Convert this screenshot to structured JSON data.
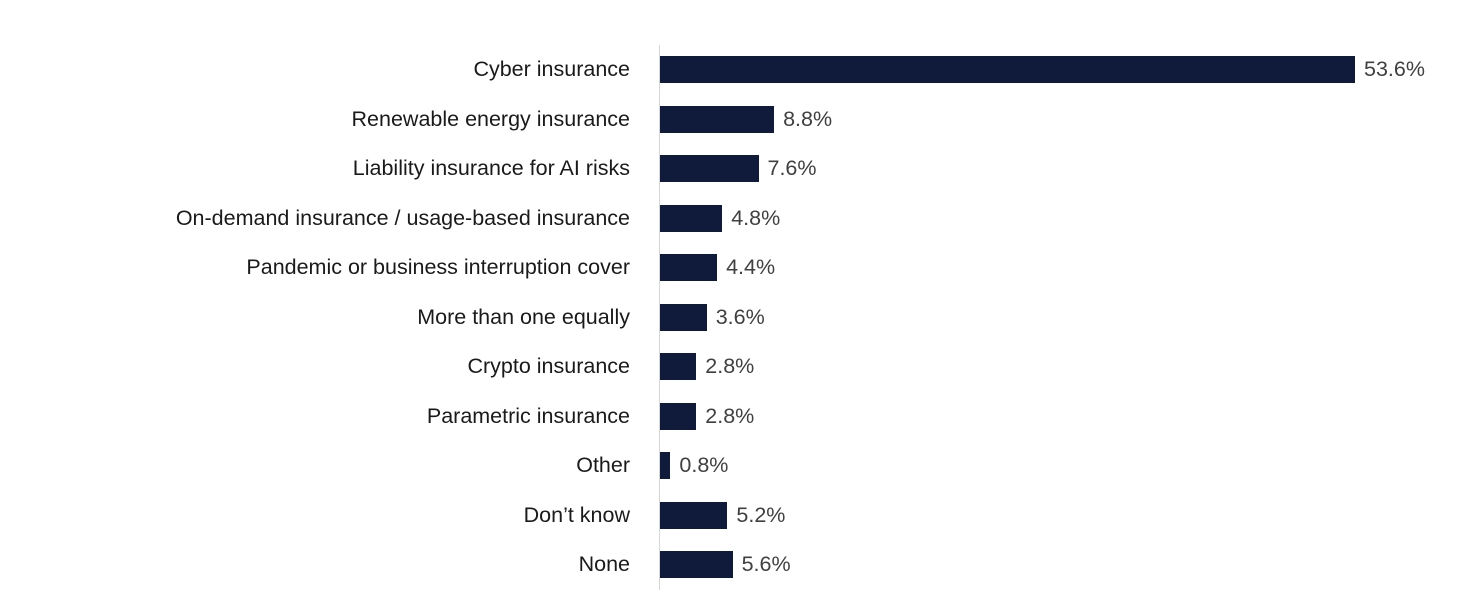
{
  "chart_data": {
    "type": "bar",
    "orientation": "horizontal",
    "title": "",
    "xlabel": "",
    "ylabel": "",
    "categories": [
      "Cyber insurance",
      "Renewable energy insurance",
      "Liability insurance for AI risks",
      "On-demand insurance / usage-based insurance",
      "Pandemic or business interruption cover",
      "More than one equally",
      "Crypto insurance",
      "Parametric insurance",
      "Other",
      "Don’t know",
      "None"
    ],
    "values": [
      53.6,
      8.8,
      7.6,
      4.8,
      4.4,
      3.6,
      2.8,
      2.8,
      0.8,
      5.2,
      5.6
    ],
    "value_labels": [
      "53.6%",
      "8.8%",
      "7.6%",
      "4.8%",
      "4.4%",
      "3.6%",
      "2.8%",
      "2.8%",
      "0.8%",
      "5.2%",
      "5.6%"
    ],
    "xlim": [
      0,
      55
    ],
    "grid": false,
    "legend": false,
    "bar_color": "#101b3c",
    "axis_line_color": "#d6d6d6",
    "category_label_color": "#1a1a1a",
    "value_label_color": "#404040"
  }
}
